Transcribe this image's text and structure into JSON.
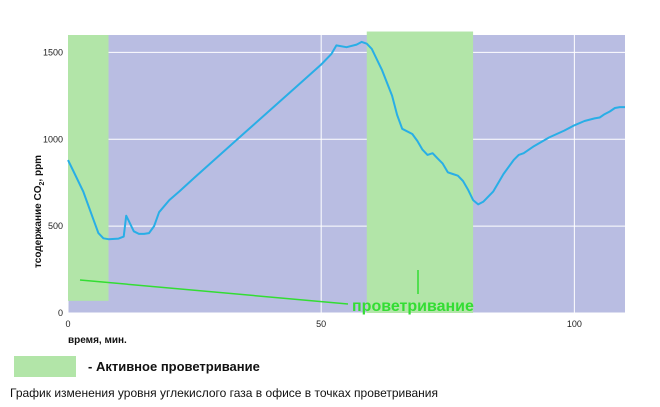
{
  "chart_data": {
    "type": "line",
    "xlabel": "время, мин.",
    "ylabel_main": "тсодержание CO",
    "ylabel_sub": "2",
    "ylabel_tail": ", ppm",
    "xlim": [
      0,
      110
    ],
    "ylim": [
      0,
      1600
    ],
    "x_ticks": [
      0,
      50,
      100
    ],
    "y_ticks": [
      0,
      500,
      1000,
      1500
    ],
    "grid": true,
    "colors": {
      "plot_bg": "#b9bde2",
      "band": "#b2e5a8",
      "line": "#29aee6",
      "annotation": "#33dd33",
      "grid": "#ffffff"
    },
    "bands": [
      {
        "x0": 0,
        "x1": 8,
        "y0": 70,
        "y1": 1600
      },
      {
        "x0": 59,
        "x1": 80,
        "y0": 0,
        "y1": 1620
      }
    ],
    "series": [
      {
        "x": [
          0,
          1,
          3,
          5,
          6,
          7,
          8,
          10,
          11,
          11.5,
          12,
          13,
          14,
          15,
          16,
          17,
          18,
          20,
          22,
          25,
          30,
          35,
          40,
          45,
          50,
          52,
          53,
          55,
          57,
          58,
          59,
          60,
          62,
          64,
          65,
          66,
          68,
          69,
          70,
          71,
          72,
          73,
          74,
          75,
          76,
          77,
          78,
          79,
          80,
          81,
          82,
          84,
          86,
          88,
          89,
          90,
          92,
          95,
          98,
          100,
          102,
          104,
          105,
          106,
          107,
          108,
          109,
          110
        ],
        "y": [
          880,
          820,
          700,
          540,
          460,
          430,
          425,
          428,
          440,
          560,
          530,
          470,
          455,
          455,
          460,
          500,
          580,
          650,
          700,
          780,
          910,
          1040,
          1170,
          1300,
          1430,
          1490,
          1540,
          1530,
          1545,
          1560,
          1550,
          1520,
          1400,
          1250,
          1140,
          1060,
          1030,
          990,
          940,
          910,
          920,
          890,
          860,
          810,
          800,
          790,
          760,
          710,
          650,
          625,
          640,
          700,
          800,
          880,
          910,
          920,
          960,
          1010,
          1050,
          1080,
          1105,
          1120,
          1125,
          1145,
          1160,
          1180,
          1185,
          1185
        ]
      }
    ],
    "annotations": [
      {
        "text": "проветривание",
        "color": "#33dd33"
      }
    ]
  },
  "legend": {
    "label": "- Активное проветривание"
  },
  "caption": "График изменения уровня углекислого газа в офисе в точках проветривания"
}
